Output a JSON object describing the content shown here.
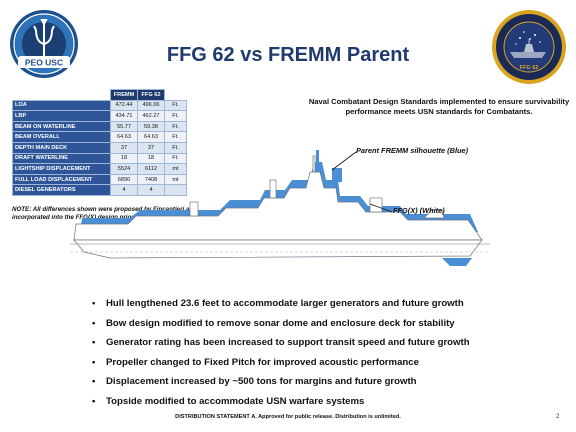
{
  "title": "FFG 62 vs FREMM Parent",
  "logos": {
    "left": {
      "text": "PEO USC",
      "icon": "trident-seal-icon"
    },
    "right": {
      "text": "FFG 62",
      "icon": "constellation-class-seal-icon"
    }
  },
  "spec_table": {
    "headers": [
      "",
      "FREMM",
      "FFG 62",
      ""
    ],
    "rows": [
      {
        "label": "LOA",
        "fremm": "472.44",
        "ffg": "496.06",
        "unit": "Ft."
      },
      {
        "label": "LBP",
        "fremm": "434.71",
        "ffg": "462.27",
        "unit": "Ft."
      },
      {
        "label": "BEAM ON WATERLINE",
        "fremm": "55.77",
        "ffg": "59.38",
        "unit": "Ft."
      },
      {
        "label": "BEAM OVERALL",
        "fremm": "64.63",
        "ffg": "64.63",
        "unit": "Ft."
      },
      {
        "label": "DEPTH MAIN DECK",
        "fremm": "37",
        "ffg": "37",
        "unit": "Ft."
      },
      {
        "label": "DRAFT WATERLINE",
        "fremm": "18",
        "ffg": "18",
        "unit": "Ft."
      },
      {
        "label": "LIGHTSHIP DISPLACEMENT",
        "fremm": "5524",
        "ffg": "6112",
        "unit": "mt"
      },
      {
        "label": "FULL LOAD DISPLACEMENT",
        "fremm": "6890",
        "ffg": "7408",
        "unit": "mt"
      },
      {
        "label": "DIESEL GENERATORS",
        "fremm": "4",
        "ffg": "4",
        "unit": ""
      }
    ]
  },
  "note": "NOTE: All differences shown were proposed by Fincantieri and incorporated into the FFG(X) design prior to contract award.",
  "standards": "Naval Combatant Design Standards implemented to ensure survivability performance meets USN standards for Combatants.",
  "callouts": {
    "blue": "Parent FREMM silhouette (Blue)",
    "white": "FFG(X) (White)"
  },
  "colors": {
    "title": "#1f3b6e",
    "silhouette_blue": "#4a8fd6",
    "table_header": "#1f3b6e"
  },
  "bullets": [
    "Hull lengthened 23.6 feet to accommodate larger generators and future growth",
    "Bow design modified to remove sonar dome and enclosure deck for stability",
    "Generator rating has been increased to support transit speed and future growth",
    "Propeller changed to Fixed Pitch for improved acoustic performance",
    "Displacement increased by ~500 tons for margins and future growth",
    "Topside modified to accommodate USN warfare systems"
  ],
  "footer": "DISTRIBUTION STATEMENT A. Approved for public release. Distribution is unlimited.",
  "page_number": "2"
}
